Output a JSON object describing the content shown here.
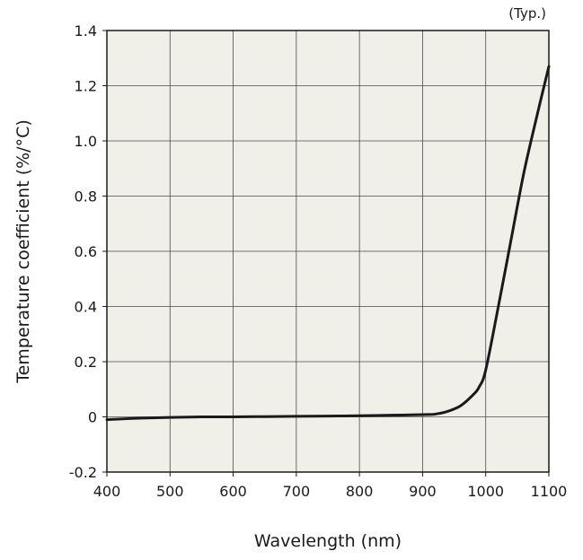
{
  "chart_data": {
    "type": "line",
    "note": "(Typ.)",
    "xlabel": "Wavelength (nm)",
    "ylabel": "Temperature coefficient (%/°C)",
    "xlim": [
      400,
      1100
    ],
    "ylim": [
      -0.2,
      1.4
    ],
    "x_ticks": [
      400,
      500,
      600,
      700,
      800,
      900,
      1000,
      1100
    ],
    "x_tick_labels": [
      "400",
      "500",
      "600",
      "700",
      "800",
      "900",
      "1000",
      "1100"
    ],
    "y_ticks": [
      -0.2,
      0,
      0.2,
      0.4,
      0.6,
      0.8,
      1.0,
      1.2,
      1.4
    ],
    "y_tick_labels": [
      "-0.2",
      "0",
      "0.2",
      "0.4",
      "0.6",
      "0.8",
      "1.0",
      "1.2",
      "1.4"
    ],
    "grid": true,
    "background_color": "#f1f0e8",
    "line_color": "#1a1a1a",
    "series": [
      {
        "x": [
          400,
          450,
          500,
          550,
          600,
          650,
          700,
          750,
          800,
          850,
          900,
          920,
          940,
          960,
          980,
          990,
          1000,
          1020,
          1040,
          1060,
          1080,
          1100
        ],
        "y": [
          -0.01,
          -0.005,
          -0.002,
          0.0,
          0.0,
          0.001,
          0.002,
          0.003,
          0.004,
          0.006,
          0.008,
          0.01,
          0.02,
          0.04,
          0.08,
          0.11,
          0.17,
          0.4,
          0.64,
          0.88,
          1.08,
          1.27
        ]
      }
    ]
  }
}
